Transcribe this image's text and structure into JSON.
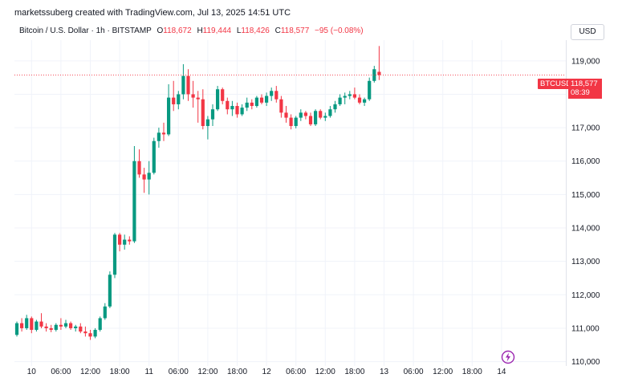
{
  "header": {
    "credit": "marketssuberg created with TradingView.com, Jul 13, 2025 14:51 UTC",
    "symbol": "Bitcoin / U.S. Dollar · 1h · BITSTAMP",
    "o_label": "O",
    "o_value": "118,672",
    "h_label": "H",
    "h_value": "119,444",
    "l_label": "L",
    "l_value": "118,426",
    "c_label": "C",
    "c_value": "118,577",
    "change": "−95 (−0.08%)"
  },
  "currency_button": "USD",
  "price_tag": {
    "ticker": "BTCUSD",
    "price": "118,577",
    "countdown": "08:39"
  },
  "colors": {
    "up": "#089981",
    "down": "#f23645",
    "grid": "#f0f3fa",
    "accent": "#9c27b0"
  },
  "logo_icon": "tradingview-lightning-icon",
  "chart_data": {
    "type": "candlestick",
    "title": "",
    "xlabel": "",
    "ylabel": "",
    "ylim": [
      109870,
      119620
    ],
    "y_ticks": [
      110000,
      111000,
      112000,
      113000,
      114000,
      115000,
      116000,
      117000,
      118000,
      119000
    ],
    "y_tick_labels": [
      "110,000",
      "111,000",
      "112,000",
      "113,000",
      "114,000",
      "115,000",
      "116,000",
      "117,000",
      "118,000",
      "119,000"
    ],
    "x_ticks": [
      {
        "index": 3,
        "label": "10"
      },
      {
        "index": 9,
        "label": "06:00"
      },
      {
        "index": 15,
        "label": "12:00"
      },
      {
        "index": 21,
        "label": "18:00"
      },
      {
        "index": 27,
        "label": "11"
      },
      {
        "index": 33,
        "label": "06:00"
      },
      {
        "index": 39,
        "label": "12:00"
      },
      {
        "index": 45,
        "label": "18:00"
      },
      {
        "index": 51,
        "label": "12"
      },
      {
        "index": 57,
        "label": "06:00"
      },
      {
        "index": 63,
        "label": "12:00"
      },
      {
        "index": 69,
        "label": "18:00"
      },
      {
        "index": 75,
        "label": "13"
      },
      {
        "index": 81,
        "label": "06:00"
      },
      {
        "index": 87,
        "label": "12:00"
      },
      {
        "index": 93,
        "label": "18:00"
      },
      {
        "index": 99,
        "label": "14"
      }
    ],
    "candles": [
      [
        110800,
        111200,
        110750,
        111150
      ],
      [
        111150,
        111300,
        110900,
        111000
      ],
      [
        111000,
        111400,
        110950,
        111300
      ],
      [
        111300,
        111350,
        110850,
        110950
      ],
      [
        110950,
        111250,
        110900,
        111200
      ],
      [
        111200,
        111450,
        111000,
        111050
      ],
      [
        111050,
        111150,
        110900,
        111000
      ],
      [
        111000,
        111100,
        110880,
        110950
      ],
      [
        110950,
        111150,
        110900,
        111100
      ],
      [
        111100,
        111300,
        110950,
        111050
      ],
      [
        111050,
        111250,
        111000,
        111150
      ],
      [
        111150,
        111200,
        110950,
        111000
      ],
      [
        111000,
        111100,
        110900,
        111050
      ],
      [
        111050,
        111150,
        110850,
        110900
      ],
      [
        110900,
        111050,
        110750,
        110850
      ],
      [
        110850,
        110950,
        110650,
        110750
      ],
      [
        110750,
        111000,
        110700,
        110950
      ],
      [
        110950,
        111350,
        110900,
        111300
      ],
      [
        111300,
        111750,
        111250,
        111650
      ],
      [
        111650,
        112700,
        111600,
        112600
      ],
      [
        112600,
        113850,
        112500,
        113800
      ],
      [
        113800,
        113850,
        113300,
        113500
      ],
      [
        113500,
        113800,
        113350,
        113650
      ],
      [
        113650,
        113750,
        113500,
        113600
      ],
      [
        113600,
        116450,
        113550,
        116000
      ],
      [
        116000,
        116350,
        115500,
        115600
      ],
      [
        115600,
        115800,
        115050,
        115450
      ],
      [
        115450,
        116000,
        115000,
        115650
      ],
      [
        115650,
        116700,
        115600,
        116600
      ],
      [
        116600,
        117000,
        116400,
        116850
      ],
      [
        116850,
        117150,
        116600,
        116800
      ],
      [
        116800,
        118300,
        116750,
        117900
      ],
      [
        117900,
        118400,
        117500,
        117700
      ],
      [
        117700,
        118100,
        117550,
        118000
      ],
      [
        118000,
        118900,
        117850,
        118550
      ],
      [
        118550,
        118750,
        117800,
        118000
      ],
      [
        118000,
        118400,
        117600,
        117900
      ],
      [
        117900,
        118100,
        117150,
        117850
      ],
      [
        117850,
        118150,
        116950,
        117050
      ],
      [
        117050,
        117350,
        116650,
        117250
      ],
      [
        117250,
        117700,
        117050,
        117550
      ],
      [
        117550,
        118250,
        117500,
        118150
      ],
      [
        118150,
        118200,
        117700,
        117800
      ],
      [
        117800,
        117900,
        117400,
        117550
      ],
      [
        117550,
        117800,
        117350,
        117650
      ],
      [
        117650,
        117750,
        117300,
        117400
      ],
      [
        117400,
        117700,
        117350,
        117600
      ],
      [
        117600,
        117900,
        117500,
        117750
      ],
      [
        117750,
        117850,
        117550,
        117650
      ],
      [
        117650,
        117950,
        117600,
        117900
      ],
      [
        117900,
        118000,
        117700,
        117750
      ],
      [
        117750,
        118050,
        117650,
        117950
      ],
      [
        117950,
        118200,
        117800,
        118100
      ],
      [
        118100,
        118250,
        117750,
        117850
      ],
      [
        117850,
        117950,
        117300,
        117450
      ],
      [
        117450,
        117650,
        117150,
        117300
      ],
      [
        117300,
        117400,
        116950,
        117050
      ],
      [
        117050,
        117350,
        116980,
        117300
      ],
      [
        117300,
        117550,
        117200,
        117450
      ],
      [
        117450,
        117500,
        117250,
        117350
      ],
      [
        117350,
        117450,
        117050,
        117100
      ],
      [
        117100,
        117550,
        117050,
        117500
      ],
      [
        117500,
        117550,
        117250,
        117300
      ],
      [
        117300,
        117450,
        117200,
        117350
      ],
      [
        117350,
        117650,
        117300,
        117550
      ],
      [
        117550,
        117800,
        117450,
        117700
      ],
      [
        117700,
        118000,
        117650,
        117900
      ],
      [
        117900,
        118050,
        117700,
        117950
      ],
      [
        117950,
        118100,
        117850,
        118000
      ],
      [
        118000,
        118200,
        117850,
        117900
      ],
      [
        117900,
        118000,
        117700,
        117750
      ],
      [
        117750,
        117900,
        117650,
        117850
      ],
      [
        117850,
        118500,
        117800,
        118400
      ],
      [
        118400,
        118850,
        118350,
        118750
      ],
      [
        118672,
        119444,
        118426,
        118577
      ]
    ]
  }
}
